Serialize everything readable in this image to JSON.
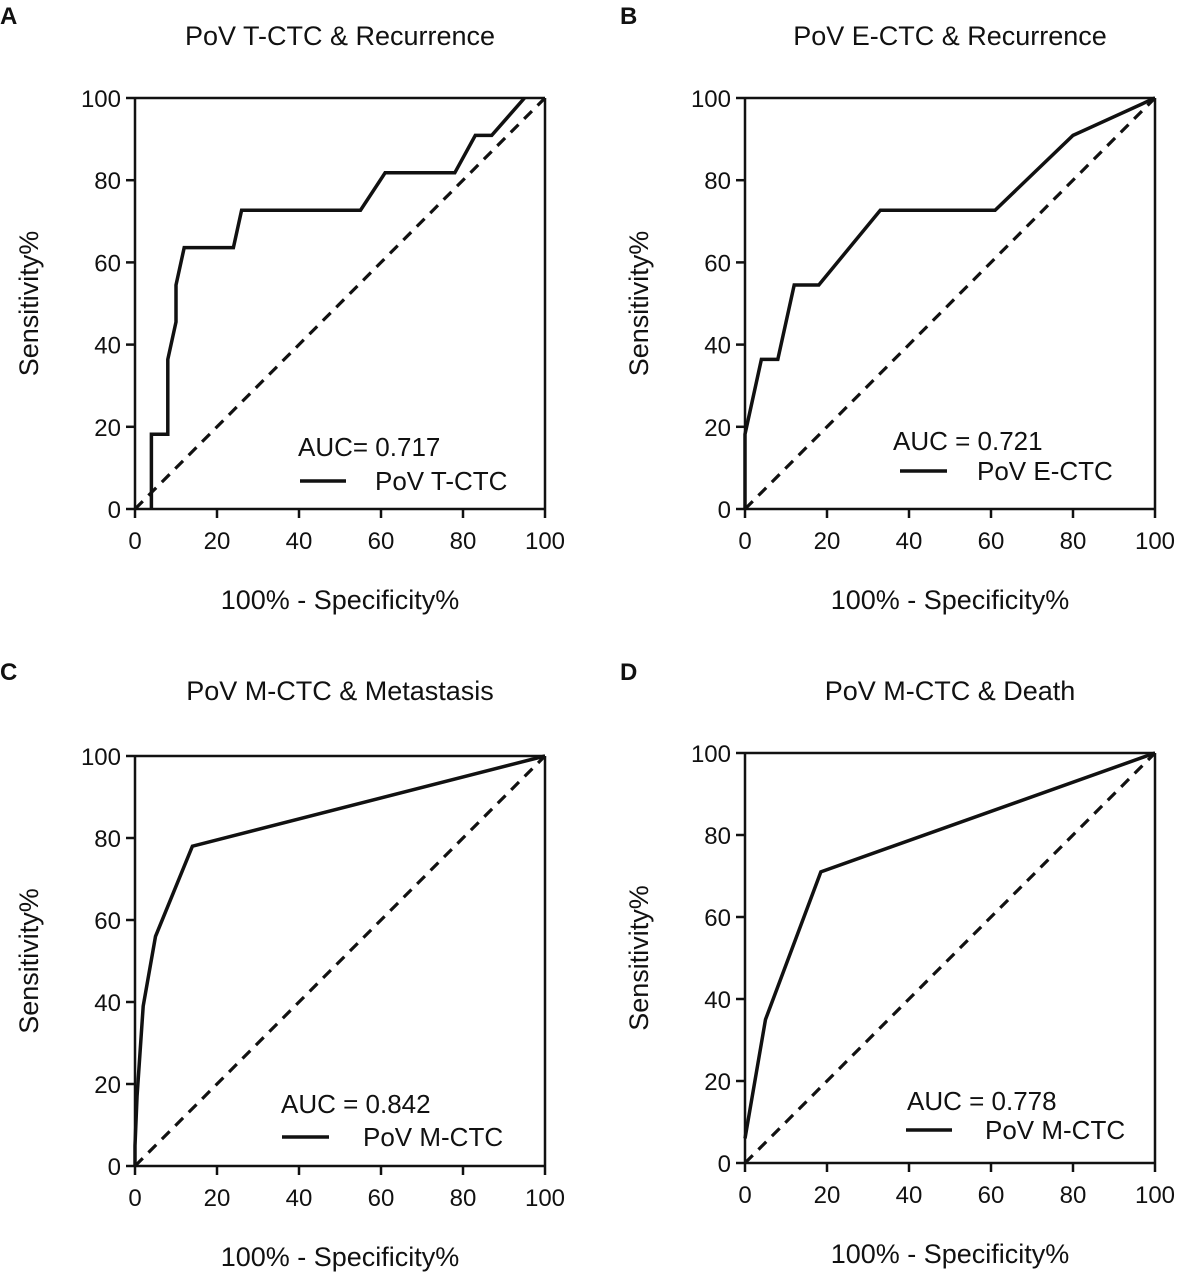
{
  "chart_data": [
    {
      "type": "line",
      "panel": "A",
      "title": "PoV T-CTC & Recurrence",
      "xlabel": "100% - Specificity%",
      "ylabel": "Sensitivity%",
      "xlim": [
        0,
        100
      ],
      "ylim": [
        0,
        100
      ],
      "xticks": [
        "0",
        "20",
        "40",
        "60",
        "80",
        "100"
      ],
      "yticks": [
        "0",
        "20",
        "40",
        "60",
        "80",
        "100"
      ],
      "auc_text": "AUC= 0.717",
      "legend_label": "PoV T-CTC",
      "legend": "bottom-right",
      "series": [
        {
          "name": "PoV T-CTC",
          "x": [
            4,
            4,
            8,
            8,
            10,
            10,
            12,
            24,
            26,
            55,
            61,
            78,
            83,
            87,
            95
          ],
          "y": [
            0,
            18.2,
            18.2,
            36.4,
            45.5,
            54.5,
            63.6,
            63.6,
            72.7,
            72.7,
            81.8,
            81.8,
            90.9,
            90.9,
            100
          ]
        },
        {
          "name": "Reference",
          "x": [
            0,
            100
          ],
          "y": [
            0,
            100
          ],
          "style": "dashed"
        }
      ]
    },
    {
      "type": "line",
      "panel": "B",
      "title": "PoV  E-CTC & Recurrence",
      "xlabel": "100% - Specificity%",
      "ylabel": "Sensitivity%",
      "xlim": [
        0,
        100
      ],
      "ylim": [
        0,
        100
      ],
      "xticks": [
        "0",
        "20",
        "40",
        "60",
        "80",
        "100"
      ],
      "yticks": [
        "0",
        "20",
        "40",
        "60",
        "80",
        "100"
      ],
      "auc_text": "AUC = 0.721",
      "legend_label": "PoV  E-CTC",
      "legend": "bottom-right",
      "series": [
        {
          "name": "PoV  E-CTC",
          "x": [
            0,
            0,
            4,
            8,
            12,
            18,
            33,
            61,
            80,
            100
          ],
          "y": [
            0,
            18.2,
            36.4,
            36.4,
            54.5,
            54.5,
            72.7,
            72.7,
            90.9,
            100
          ]
        },
        {
          "name": "Reference",
          "x": [
            0,
            100
          ],
          "y": [
            0,
            100
          ],
          "style": "dashed"
        }
      ]
    },
    {
      "type": "line",
      "panel": "C",
      "title": "PoV M-CTC & Metastasis",
      "xlabel": "100% - Specificity%",
      "ylabel": "Sensitivity%",
      "xlim": [
        0,
        100
      ],
      "ylim": [
        0,
        100
      ],
      "xticks": [
        "0",
        "20",
        "40",
        "60",
        "80",
        "100"
      ],
      "yticks": [
        "0",
        "20",
        "40",
        "60",
        "80",
        "100"
      ],
      "auc_text": "AUC = 0.842",
      "legend_label": "PoV M-CTC",
      "legend": "bottom-right",
      "series": [
        {
          "name": "PoV M-CTC",
          "x": [
            0,
            0,
            0.5,
            2,
            5,
            14,
            100
          ],
          "y": [
            0,
            5,
            17,
            39,
            56,
            78,
            100
          ]
        },
        {
          "name": "Reference",
          "x": [
            0,
            100
          ],
          "y": [
            0,
            100
          ],
          "style": "dashed"
        }
      ]
    },
    {
      "type": "line",
      "panel": "D",
      "title": "PoV M-CTC & Death",
      "xlabel": "100% - Specificity%",
      "ylabel": "Sensitivity%",
      "xlim": [
        0,
        100
      ],
      "ylim": [
        0,
        100
      ],
      "xticks": [
        "0",
        "20",
        "40",
        "60",
        "80",
        "100"
      ],
      "yticks": [
        "0",
        "20",
        "40",
        "60",
        "80",
        "100"
      ],
      "auc_text": "AUC = 0.778",
      "legend_label": "PoV M-CTC",
      "legend": "bottom-right",
      "series": [
        {
          "name": "PoV M-CTC",
          "x": [
            0,
            5,
            18.5,
            100
          ],
          "y": [
            6,
            35,
            71,
            100
          ]
        },
        {
          "name": "Reference",
          "x": [
            0,
            100
          ],
          "y": [
            0,
            100
          ],
          "style": "dashed"
        }
      ]
    }
  ]
}
